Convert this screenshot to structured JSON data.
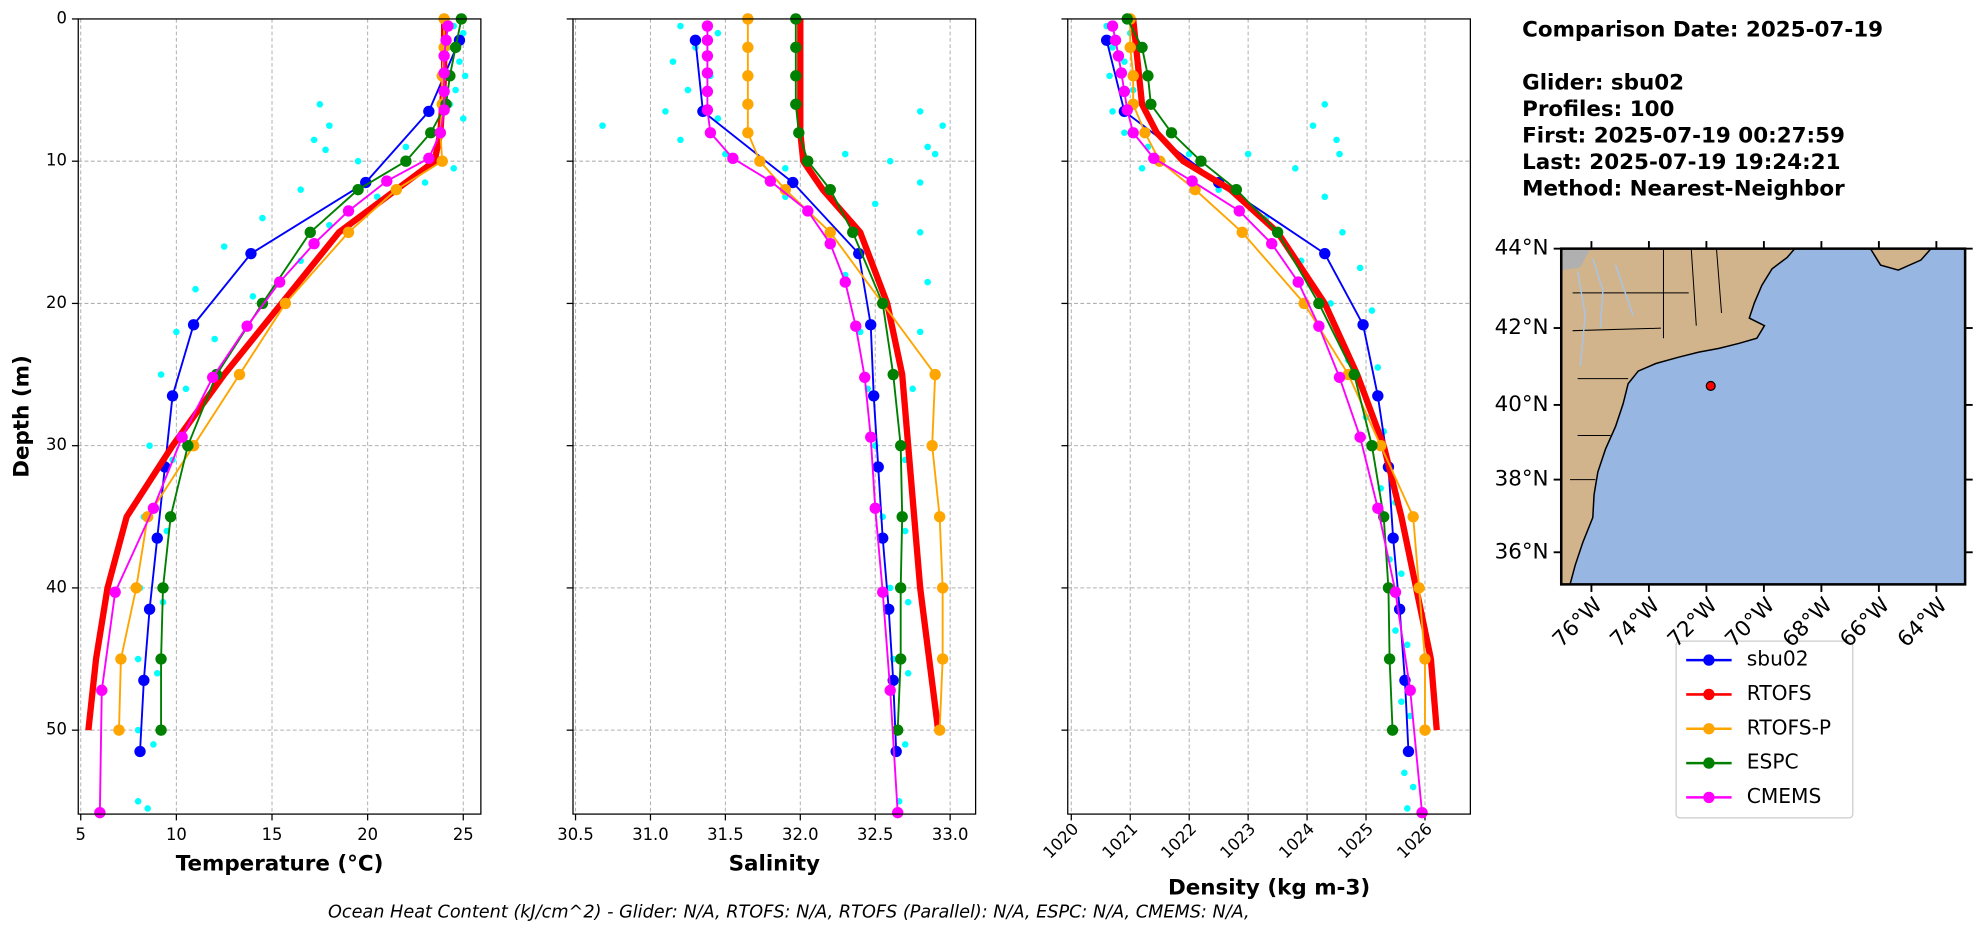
{
  "chart_data": [
    {
      "type": "line",
      "xlabel": "Temperature (°C)",
      "ylabel": "Depth (m)",
      "xlim": [
        4.87,
        25.92
      ],
      "ylim": [
        0,
        55.9
      ],
      "y_inverted": true,
      "grid": true,
      "ytick_labels": true,
      "xticks": [
        5,
        10,
        15,
        20,
        25
      ],
      "yticks": [
        0,
        10,
        20,
        30,
        40,
        50
      ],
      "series": [
        {
          "style": "scatter",
          "color": "#00ffff",
          "depths": [
            0.5,
            1,
            2,
            3,
            4,
            5,
            6,
            7,
            6,
            7.5,
            8.5,
            9.2,
            9,
            10,
            10.5,
            12,
            12.5,
            11.5,
            14,
            14.5,
            16,
            17,
            19,
            19.5,
            22,
            22.5,
            25,
            26,
            30,
            31,
            35,
            36,
            40,
            41,
            45,
            46,
            50,
            51,
            55,
            55.5
          ],
          "values": [
            24.5,
            25.0,
            24.2,
            24.8,
            25.1,
            24.6,
            24.3,
            25.0,
            17.5,
            18.0,
            17.2,
            17.8,
            22.0,
            19.5,
            24.5,
            16.5,
            20.5,
            23,
            14.5,
            18,
            12.5,
            16.5,
            11,
            14,
            10,
            12,
            9.2,
            10.5,
            8.6,
            9.8,
            8.3,
            9.5,
            8.1,
            9.3,
            8.0,
            9.0,
            8.0,
            8.8,
            8.0,
            8.5
          ]
        },
        {
          "name": "sbu02",
          "color": "#0000ff",
          "linewidth": 1.5,
          "marker": 4.5,
          "depths": [
            1.5,
            6.5,
            11.5,
            16.5,
            21.5,
            26.5,
            31.5,
            36.5,
            41.5,
            46.5,
            51.5
          ],
          "values": [
            24.8,
            23.2,
            19.9,
            13.9,
            10.9,
            9.8,
            9.4,
            9.0,
            8.6,
            8.3,
            8.1
          ]
        },
        {
          "name": "RTOFS",
          "color": "#ff0000",
          "linewidth": 5,
          "marker": 0,
          "depths": [
            0,
            2,
            4,
            6,
            8,
            10,
            12,
            15,
            20,
            25,
            30,
            35,
            40,
            45,
            50
          ],
          "values": [
            24.0,
            24.0,
            24.0,
            23.9,
            23.8,
            23.5,
            21.5,
            18.5,
            15.5,
            12.5,
            9.8,
            7.4,
            6.4,
            5.8,
            5.4
          ]
        },
        {
          "name": "RTOFS-P",
          "color": "#ffa500",
          "linewidth": 1.5,
          "marker": 4.5,
          "depths": [
            0,
            2,
            4,
            6,
            8,
            10,
            12,
            15,
            20,
            25,
            30,
            35,
            40,
            45,
            50
          ],
          "values": [
            24.0,
            24.0,
            23.9,
            23.9,
            23.8,
            23.9,
            21.5,
            19.0,
            15.7,
            13.3,
            10.9,
            8.5,
            7.9,
            7.1,
            7.0
          ]
        },
        {
          "name": "ESPC",
          "color": "#008000",
          "linewidth": 1.5,
          "marker": 4.5,
          "depths": [
            0,
            2,
            4,
            6,
            8,
            10,
            12,
            15,
            20,
            25,
            30,
            35,
            40,
            45,
            50
          ],
          "values": [
            24.9,
            24.6,
            24.3,
            24.1,
            23.3,
            22.0,
            19.5,
            17.0,
            14.5,
            12.1,
            10.6,
            9.7,
            9.3,
            9.2,
            9.2
          ]
        },
        {
          "name": "CMEMS",
          "color": "#ff00ff",
          "linewidth": 1.5,
          "marker": 4.5,
          "depths": [
            0.5,
            1.5,
            2.6,
            3.8,
            5.1,
            6.4,
            8,
            9.8,
            11.4,
            13.5,
            15.8,
            18.5,
            21.6,
            25.2,
            29.4,
            34.4,
            40.3,
            47.2,
            55.8
          ],
          "values": [
            24.2,
            24.1,
            24.0,
            24.0,
            24.0,
            24.0,
            23.8,
            23.2,
            21.0,
            19.0,
            17.2,
            15.4,
            13.7,
            11.9,
            10.3,
            8.8,
            6.8,
            6.1,
            6.0
          ]
        }
      ]
    },
    {
      "type": "line",
      "xlabel": "Salinity",
      "xlim": [
        30.483,
        33.17
      ],
      "ylim": [
        0,
        55.9
      ],
      "y_inverted": true,
      "grid": true,
      "ytick_labels": false,
      "xticks": [
        30.5,
        {
          "value": 31,
          "label": "31.0"
        },
        31.5,
        {
          "value": 32,
          "label": "32.0"
        },
        32.5,
        {
          "value": 33,
          "label": "33.0"
        }
      ],
      "yticks": [
        0,
        10,
        20,
        30,
        40,
        50
      ],
      "series": [
        {
          "style": "scatter",
          "color": "#00ffff",
          "depths": [
            0.5,
            1,
            2,
            3,
            4,
            5,
            6.5,
            7,
            7.5,
            6.5,
            7.5,
            9,
            9.5,
            8.5,
            9.5,
            10.5,
            9.5,
            10,
            11.5,
            12.5,
            13,
            15,
            15,
            18,
            18.5,
            22,
            22,
            26,
            26,
            30,
            31,
            35,
            36,
            40,
            41,
            45,
            46,
            50,
            51,
            55
          ],
          "values": [
            31.2,
            31.45,
            31.3,
            31.15,
            31.4,
            31.25,
            31.1,
            31.45,
            30.68,
            32.8,
            32.95,
            32.85,
            32.9,
            31.2,
            31.5,
            31.9,
            32.3,
            32.6,
            32.8,
            31.9,
            32.5,
            32.2,
            32.8,
            32.3,
            32.85,
            32.4,
            32.8,
            32.45,
            32.75,
            32.5,
            32.7,
            32.55,
            32.7,
            32.6,
            32.72,
            32.62,
            32.72,
            32.65,
            32.7,
            32.66
          ]
        },
        {
          "color": "#0000ff",
          "linewidth": 1.5,
          "marker": 4.5,
          "depths": [
            1.5,
            6.5,
            11.5,
            16.5,
            21.5,
            26.5,
            31.5,
            36.5,
            41.5,
            46.5,
            51.5
          ],
          "values": [
            31.3,
            31.35,
            31.95,
            32.39,
            32.47,
            32.49,
            32.52,
            32.55,
            32.59,
            32.62,
            32.64
          ]
        },
        {
          "color": "#ff0000",
          "linewidth": 5,
          "marker": 0,
          "depths": [
            0,
            2,
            4,
            6,
            8,
            10,
            12,
            15,
            20,
            25,
            30,
            35,
            40,
            45,
            50
          ],
          "values": [
            32.0,
            32.0,
            32.0,
            32.0,
            32.0,
            32.02,
            32.15,
            32.4,
            32.58,
            32.68,
            32.72,
            32.76,
            32.8,
            32.86,
            32.92
          ]
        },
        {
          "color": "#ffa500",
          "linewidth": 1.5,
          "marker": 4.5,
          "depths": [
            0,
            2,
            4,
            6,
            8,
            10,
            12,
            15,
            20,
            25,
            30,
            35,
            40,
            45,
            50
          ],
          "values": [
            31.65,
            31.65,
            31.65,
            31.65,
            31.65,
            31.73,
            31.9,
            32.2,
            32.55,
            32.9,
            32.88,
            32.93,
            32.95,
            32.95,
            32.93
          ]
        },
        {
          "color": "#008000",
          "linewidth": 1.5,
          "marker": 4.5,
          "depths": [
            0,
            2,
            4,
            6,
            8,
            10,
            12,
            15,
            20,
            25,
            30,
            35,
            40,
            45,
            50
          ],
          "values": [
            31.97,
            31.97,
            31.97,
            31.97,
            31.99,
            32.05,
            32.2,
            32.35,
            32.55,
            32.62,
            32.67,
            32.68,
            32.67,
            32.67,
            32.65
          ]
        },
        {
          "color": "#ff00ff",
          "linewidth": 1.5,
          "marker": 4.5,
          "depths": [
            0.5,
            1.5,
            2.6,
            3.8,
            5.1,
            6.4,
            8,
            9.8,
            11.4,
            13.5,
            15.8,
            18.5,
            21.6,
            25.2,
            29.4,
            34.4,
            40.3,
            47.2,
            55.8
          ],
          "values": [
            31.38,
            31.38,
            31.38,
            31.38,
            31.38,
            31.38,
            31.4,
            31.55,
            31.8,
            32.05,
            32.2,
            32.3,
            32.37,
            32.43,
            32.47,
            32.5,
            32.55,
            32.6,
            32.65
          ]
        }
      ]
    },
    {
      "type": "line",
      "xlabel": "Density (kg m-3)",
      "xtick_rotation": 45,
      "xlim": [
        1019.94,
        1026.77
      ],
      "ylim": [
        0,
        55.9
      ],
      "y_inverted": true,
      "grid": true,
      "ytick_labels": false,
      "xticks": [
        1020,
        1021,
        1022,
        1023,
        1024,
        1025,
        1026
      ],
      "yticks": [
        0,
        10,
        20,
        30,
        40,
        50
      ],
      "series": [
        {
          "style": "scatter",
          "color": "#00ffff",
          "depths": [
            0.5,
            1,
            2,
            3,
            4,
            5,
            6.5,
            8,
            6,
            7.5,
            8.5,
            9.5,
            9,
            9.5,
            9.5,
            10.5,
            10.5,
            12,
            12.5,
            14,
            15,
            17,
            17.5,
            20,
            20.5,
            24,
            24.5,
            28,
            29,
            33,
            34,
            38,
            39,
            43,
            44,
            48,
            49,
            53,
            54,
            55.5
          ],
          "values": [
            1020.6,
            1021.0,
            1020.7,
            1020.9,
            1020.65,
            1021.05,
            1020.7,
            1020.9,
            1024.3,
            1024.1,
            1024.5,
            1024.55,
            1021.3,
            1022,
            1023,
            1023.8,
            1021.2,
            1022.5,
            1024.3,
            1023.3,
            1024.6,
            1023.9,
            1024.9,
            1024.4,
            1025.1,
            1024.7,
            1025.2,
            1025.0,
            1025.3,
            1025.25,
            1025.5,
            1025.4,
            1025.6,
            1025.5,
            1025.7,
            1025.6,
            1025.75,
            1025.65,
            1025.8,
            1025.7
          ]
        },
        {
          "color": "#0000ff",
          "linewidth": 1.5,
          "marker": 4.5,
          "depths": [
            1.5,
            6.5,
            11.5,
            16.5,
            21.5,
            26.5,
            31.5,
            36.5,
            41.5,
            46.5,
            51.5
          ],
          "values": [
            1020.6,
            1020.9,
            1022.5,
            1024.3,
            1024.95,
            1025.2,
            1025.38,
            1025.46,
            1025.57,
            1025.66,
            1025.72
          ]
        },
        {
          "color": "#ff0000",
          "linewidth": 5,
          "marker": 0,
          "depths": [
            0,
            2,
            4,
            6,
            8,
            10,
            12,
            15,
            20,
            25,
            30,
            35,
            40,
            45,
            50
          ],
          "values": [
            1021.05,
            1021.1,
            1021.15,
            1021.2,
            1021.45,
            1021.9,
            1022.7,
            1023.5,
            1024.3,
            1024.85,
            1025.3,
            1025.6,
            1025.85,
            1026.1,
            1026.2
          ]
        },
        {
          "color": "#ffa500",
          "linewidth": 1.5,
          "marker": 4.5,
          "depths": [
            0,
            2,
            4,
            6,
            8,
            10,
            12,
            15,
            20,
            25,
            30,
            35,
            40,
            45,
            50
          ],
          "values": [
            1021.0,
            1021.0,
            1021.05,
            1021.05,
            1021.25,
            1021.5,
            1022.1,
            1022.9,
            1023.95,
            1024.7,
            1025.25,
            1025.8,
            1025.9,
            1026.0,
            1026.0
          ]
        },
        {
          "color": "#008000",
          "linewidth": 1.5,
          "marker": 4.5,
          "depths": [
            0,
            2,
            4,
            6,
            8,
            10,
            12,
            15,
            20,
            25,
            30,
            35,
            40,
            45,
            50
          ],
          "values": [
            1020.95,
            1021.2,
            1021.3,
            1021.35,
            1021.7,
            1022.2,
            1022.8,
            1023.5,
            1024.2,
            1024.8,
            1025.1,
            1025.3,
            1025.38,
            1025.4,
            1025.45
          ]
        },
        {
          "color": "#ff00ff",
          "linewidth": 1.5,
          "marker": 4.5,
          "depths": [
            0.5,
            1.5,
            2.6,
            3.8,
            5.1,
            6.4,
            8,
            9.8,
            11.4,
            13.5,
            15.8,
            18.5,
            21.6,
            25.2,
            29.4,
            34.4,
            40.3,
            47.2,
            55.8
          ],
          "values": [
            1020.7,
            1020.75,
            1020.8,
            1020.85,
            1020.9,
            1020.95,
            1021.05,
            1021.4,
            1022.05,
            1022.85,
            1023.4,
            1023.85,
            1024.2,
            1024.55,
            1024.9,
            1025.2,
            1025.5,
            1025.75,
            1025.95
          ]
        }
      ]
    },
    {
      "type": "map",
      "projection": "mercator",
      "xlim": [
        -77.05,
        -63.0
      ],
      "ylim": [
        35.1,
        44.0
      ],
      "xticks": [
        {
          "value": -76,
          "label": "76°W"
        },
        {
          "value": -74,
          "label": "74°W"
        },
        {
          "value": -72,
          "label": "72°W"
        },
        {
          "value": -70,
          "label": "70°W"
        },
        {
          "value": -68,
          "label": "68°W"
        },
        {
          "value": -66,
          "label": "66°W"
        },
        {
          "value": -64,
          "label": "64°W"
        }
      ],
      "yticks": [
        {
          "value": 36,
          "label": "36°N"
        },
        {
          "value": 38,
          "label": "38°N"
        },
        {
          "value": 40,
          "label": "40°N"
        },
        {
          "value": 42,
          "label": "42°N"
        },
        {
          "value": 44,
          "label": "44°N"
        }
      ],
      "glider_location": {
        "lon": -71.85,
        "lat": 40.5,
        "color": "#ff0000"
      }
    }
  ],
  "info": [
    "Comparison Date: 2025-07-19",
    "Glider: sbu02",
    "Profiles: 100",
    "First: 2025-07-19 00:27:59",
    "Last: 2025-07-19 19:24:21",
    "Method: Nearest-Neighbor"
  ],
  "footer": "Ocean Heat Content (kJ/cm^2) - Glider: N/A,  RTOFS: N/A,  RTOFS (Parallel): N/A,  ESPC: N/A,  CMEMS: N/A,"
}
